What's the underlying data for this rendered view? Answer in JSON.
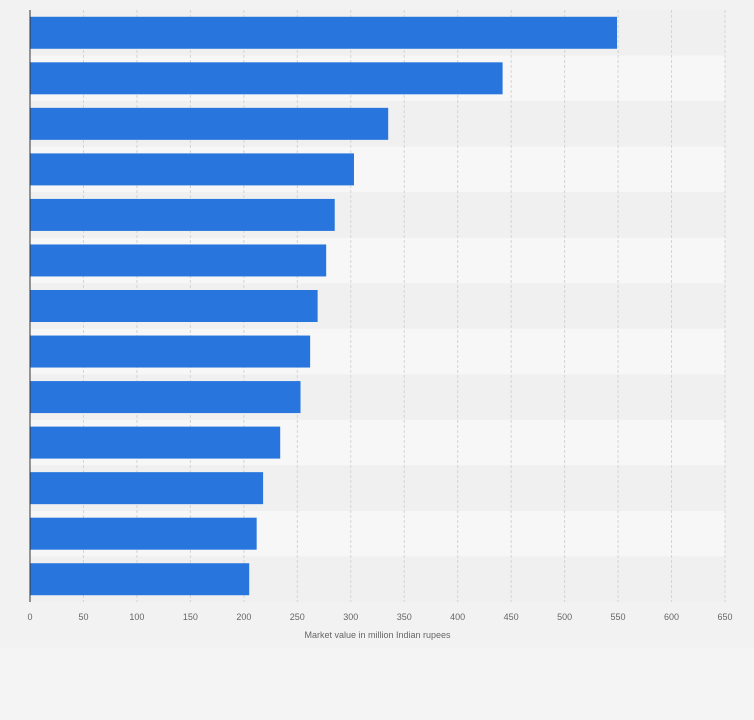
{
  "chart_data": {
    "type": "bar",
    "orientation": "horizontal",
    "categories": [
      "",
      "",
      "",
      "",
      "",
      "",
      "",
      "",
      "",
      "",
      "",
      "",
      ""
    ],
    "values": [
      549,
      442,
      335,
      303,
      285,
      277,
      269,
      262,
      253,
      234,
      218,
      212,
      205
    ],
    "xlabel": "Market value in million Indian rupees",
    "ylabel": "",
    "xlim": [
      0,
      650
    ],
    "xticks": [
      "0",
      "50",
      "100",
      "150",
      "200",
      "250",
      "300",
      "350",
      "400",
      "450",
      "500",
      "550",
      "600",
      "650"
    ],
    "grid": true,
    "legend": "none",
    "colors": {
      "bar": "#2876dd",
      "grid": "#d4d4d4",
      "band_light": "#f7f7f8",
      "band_dark": "#f0f0f1",
      "axis": "#333333"
    }
  }
}
